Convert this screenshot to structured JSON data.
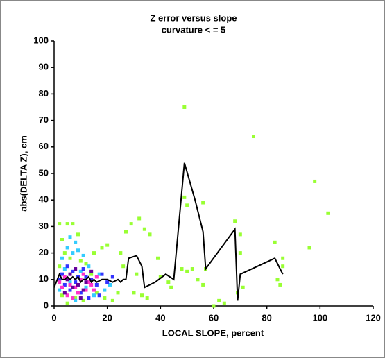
{
  "chart_data": {
    "type": "scatter",
    "title": "Z error versus slope",
    "subtitle": "curvature < = 5",
    "x_label": "LOCAL SLOPE, percent",
    "y_label": "abs(DELTA Z), cm",
    "xlim": [
      0,
      120
    ],
    "xticks": [
      0,
      20,
      40,
      60,
      80,
      100,
      120
    ],
    "ylim": [
      0,
      100
    ],
    "yticks": [
      0,
      10,
      20,
      30,
      40,
      50,
      60,
      70,
      80,
      90,
      100
    ],
    "grid": false,
    "series": [
      {
        "mode": "markers",
        "color": "#99ff33",
        "x": [
          49,
          75,
          98,
          103,
          49,
          50,
          56,
          68,
          70,
          57,
          52,
          50,
          48,
          54,
          56,
          62,
          64,
          69,
          71,
          70,
          83,
          84,
          85,
          86,
          86,
          96,
          60,
          32,
          29,
          34,
          36,
          39,
          40,
          43,
          44,
          35,
          30,
          27,
          2,
          5,
          7,
          3,
          9,
          20,
          15,
          18,
          25,
          26,
          31,
          33,
          24,
          22,
          2,
          4,
          6,
          10,
          12,
          14,
          16,
          19,
          8,
          3,
          5,
          11
        ],
        "y": [
          75,
          64,
          47,
          35,
          41,
          38,
          39,
          32,
          27,
          14,
          14,
          13,
          14,
          10,
          8,
          2,
          1,
          5,
          7,
          20,
          24,
          10,
          8,
          15,
          18,
          22,
          0,
          33,
          31,
          29,
          27,
          18,
          11,
          9,
          7,
          3,
          5,
          28,
          31,
          31,
          31,
          25,
          27,
          23,
          20,
          22,
          20,
          15,
          12,
          4,
          5,
          2,
          15,
          20,
          18,
          17,
          16,
          12,
          5,
          3,
          3,
          4,
          1,
          2
        ]
      },
      {
        "mode": "markers",
        "color": "#33ccff",
        "x": [
          6,
          8,
          5,
          9,
          3,
          7,
          11,
          13,
          17,
          21,
          4,
          10,
          6,
          2,
          12,
          15,
          19,
          8
        ],
        "y": [
          26,
          24,
          22,
          21,
          18,
          20,
          19,
          15,
          12,
          8,
          14,
          13,
          9,
          6,
          7,
          4,
          6,
          2
        ]
      },
      {
        "mode": "markers",
        "color": "#3333ff",
        "x": [
          3,
          5,
          7,
          9,
          11,
          4,
          6,
          8,
          10,
          12,
          14,
          16,
          18,
          20,
          13,
          2,
          22,
          17
        ],
        "y": [
          12,
          15,
          13,
          11,
          14,
          8,
          6,
          9,
          5,
          11,
          10,
          8,
          12,
          9,
          3,
          10,
          11,
          4
        ]
      },
      {
        "mode": "markers",
        "color": "#ff33cc",
        "x": [
          4,
          6,
          8,
          10,
          12,
          14,
          5,
          7,
          9,
          11,
          3,
          15,
          13,
          16,
          2
        ],
        "y": [
          11,
          8,
          7,
          10,
          6,
          8,
          4,
          3,
          5,
          12,
          7,
          6,
          9,
          11,
          9
        ]
      },
      {
        "mode": "markers",
        "color": "#660099",
        "x": [
          5,
          7,
          9,
          11,
          6,
          8,
          10,
          4,
          12,
          14
        ],
        "y": [
          10,
          7,
          8,
          6,
          12,
          14,
          3,
          5,
          9,
          13
        ]
      },
      {
        "mode": "line",
        "color": "#000000",
        "x": [
          0,
          2,
          3,
          4,
          5,
          6,
          7,
          8,
          9,
          10,
          11,
          12,
          13,
          14,
          15,
          16,
          18,
          20,
          22,
          24,
          25,
          26,
          27,
          28,
          31,
          33,
          34,
          38,
          42,
          45,
          49,
          53,
          56,
          57,
          68,
          69,
          70,
          83,
          86
        ],
        "y": [
          7,
          12,
          10,
          10,
          11,
          10,
          11,
          10,
          11,
          9,
          10,
          10,
          11,
          9,
          10,
          9,
          10,
          10,
          9,
          10,
          9,
          10,
          10,
          18,
          19,
          15,
          7,
          9,
          12,
          10,
          54,
          40,
          28,
          14,
          29,
          2,
          12,
          18,
          12
        ]
      }
    ]
  }
}
